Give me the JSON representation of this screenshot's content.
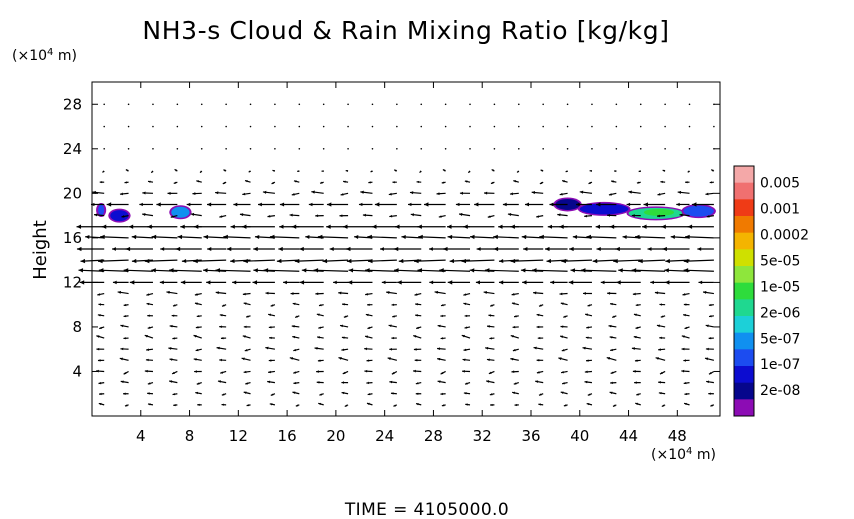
{
  "chart_data": {
    "type": "heatmap",
    "title": "NH3-s Cloud & Rain Mixing Ratio [kg/kg]",
    "ylabel": "Height",
    "y_unit_base": "(×10",
    "y_unit_exp": "4",
    "y_unit_tail": " m)",
    "x_unit_base": "(×10",
    "x_unit_exp": "4",
    "x_unit_tail": " m)",
    "xlim": [
      0,
      51.5
    ],
    "ylim": [
      0,
      30
    ],
    "xticks": [
      4,
      8,
      12,
      16,
      20,
      24,
      28,
      32,
      36,
      40,
      44,
      48
    ],
    "yticks": [
      4,
      8,
      12,
      16,
      20,
      24,
      28
    ],
    "time_label": "TIME = 4105000.0",
    "colorbar": {
      "labels": [
        "0.005",
        "0.001",
        "0.0002",
        "5e-05",
        "1e-05",
        "2e-06",
        "5e-07",
        "1e-07",
        "2e-08"
      ],
      "colors": [
        "#f4a8a8",
        "#f07070",
        "#ef3b16",
        "#f07a00",
        "#f4b400",
        "#cfe000",
        "#8ee63c",
        "#2edc3c",
        "#1fd890",
        "#1cd0d8",
        "#1090f0",
        "#1c4cf0",
        "#0c0cd0",
        "#06068c",
        "#8c0cb4"
      ]
    },
    "cloud_patches": [
      {
        "x": [
          0.5,
          1.0
        ],
        "y": 18.5,
        "level_index": 11
      },
      {
        "x": [
          1.5,
          3.0
        ],
        "y": 18.0,
        "level_index": 12
      },
      {
        "x": [
          6.5,
          8.0
        ],
        "y": 18.3,
        "level_index": 10
      },
      {
        "x": [
          38.0,
          40.0
        ],
        "y": 19.0,
        "level_index": 13
      },
      {
        "x": [
          40.0,
          44.0
        ],
        "y": 18.6,
        "level_index": 12
      },
      {
        "x": [
          44.0,
          48.5
        ],
        "y": 18.2,
        "level_index": 8
      },
      {
        "x": [
          48.5,
          51.0
        ],
        "y": 18.4,
        "level_index": 11
      }
    ],
    "wind_field": {
      "x_spacing": 2.0,
      "rows": [
        {
          "y": 28,
          "u": 0,
          "w": 0
        },
        {
          "y": 26,
          "u": 0,
          "w": 0
        },
        {
          "y": 24,
          "u": 0,
          "w": 0
        },
        {
          "y": 22,
          "u": -0.2,
          "w": 0
        },
        {
          "y": 21,
          "u": -0.4,
          "w": 0
        },
        {
          "y": 20,
          "u": -0.9,
          "w": 0
        },
        {
          "y": 19,
          "u": -1.6,
          "w": 0
        },
        {
          "y": 18,
          "u": -0.8,
          "w": 0
        },
        {
          "y": 17,
          "u": -2.4,
          "w": 0
        },
        {
          "y": 16,
          "u": -2.2,
          "w": 0.1
        },
        {
          "y": 15,
          "u": -2.0,
          "w": 0
        },
        {
          "y": 14,
          "u": -2.4,
          "w": -0.1
        },
        {
          "y": 13,
          "u": -2.6,
          "w": 0.1
        },
        {
          "y": 12,
          "u": -1.8,
          "w": 0
        },
        {
          "y": 11,
          "u": -0.8,
          "w": 0
        },
        {
          "y": 10,
          "u": -0.5,
          "w": 0
        },
        {
          "y": 9,
          "u": -0.5,
          "w": 0
        },
        {
          "y": 8,
          "u": -0.6,
          "w": 0
        },
        {
          "y": 7,
          "u": -0.6,
          "w": 0.1
        },
        {
          "y": 6,
          "u": -0.7,
          "w": 0
        },
        {
          "y": 5,
          "u": -0.7,
          "w": 0.1
        },
        {
          "y": 4,
          "u": -0.6,
          "w": -0.1
        },
        {
          "y": 3,
          "u": -0.6,
          "w": 0
        },
        {
          "y": 2,
          "u": -0.5,
          "w": 0
        },
        {
          "y": 1,
          "u": -0.4,
          "w": 0
        }
      ]
    }
  }
}
